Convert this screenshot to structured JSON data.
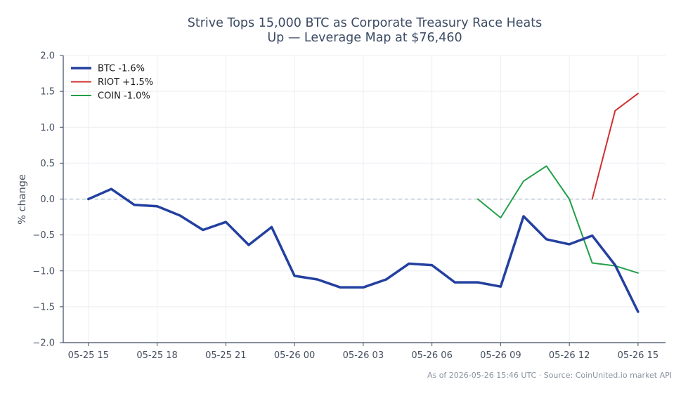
{
  "chart_data": {
    "type": "line",
    "title_lines": [
      "Strive Tops 15,000 BTC as Corporate Treasury Race Heats",
      "Up — Leverage Map at $76,460"
    ],
    "xlabel": "",
    "ylabel": "% change",
    "footer": "As of 2026-05-26 15:46 UTC · Source: CoinUnited.io market API",
    "x_ticks": [
      "05-25 15",
      "05-25 18",
      "05-25 21",
      "05-26 00",
      "05-26 03",
      "05-26 06",
      "05-26 09",
      "05-26 12",
      "05-26 15"
    ],
    "x_range_hours": [
      -1.1,
      25.2
    ],
    "y_ticks": [
      "2.0",
      "1.5",
      "1.0",
      "0.5",
      "0.0",
      "−0.5",
      "−1.0",
      "−1.5",
      "−2.0"
    ],
    "ylim": [
      -2.0,
      2.0
    ],
    "grid": true,
    "zero_line": true,
    "legend_position": "top-left",
    "series": [
      {
        "name": "BTC -1.6%",
        "color": "#2340a0",
        "x": [
          0,
          1,
          2,
          3,
          4,
          5,
          6,
          7,
          8,
          9,
          10,
          11,
          12,
          13,
          14,
          15,
          16,
          17,
          18,
          19,
          20,
          21,
          22,
          23,
          24
        ],
        "values": [
          0.0,
          0.14,
          -0.08,
          -0.1,
          -0.23,
          -0.43,
          -0.32,
          -0.64,
          -0.39,
          -1.07,
          -1.12,
          -1.23,
          -1.23,
          -1.12,
          -0.9,
          -0.92,
          -1.16,
          -1.16,
          -1.22,
          -0.24,
          -0.56,
          -0.63,
          -0.51,
          -0.92,
          -1.57
        ]
      },
      {
        "name": "RIOT +1.5%",
        "color": "#d03030",
        "x": [
          22,
          23,
          24
        ],
        "values": [
          0.0,
          1.23,
          1.47
        ]
      },
      {
        "name": "COIN -1.0%",
        "color": "#22a04a",
        "x": [
          17,
          18,
          19,
          20,
          21,
          22,
          23,
          24
        ],
        "values": [
          0.0,
          -0.26,
          0.25,
          0.46,
          0.0,
          -0.89,
          -0.93,
          -1.03
        ]
      }
    ]
  }
}
